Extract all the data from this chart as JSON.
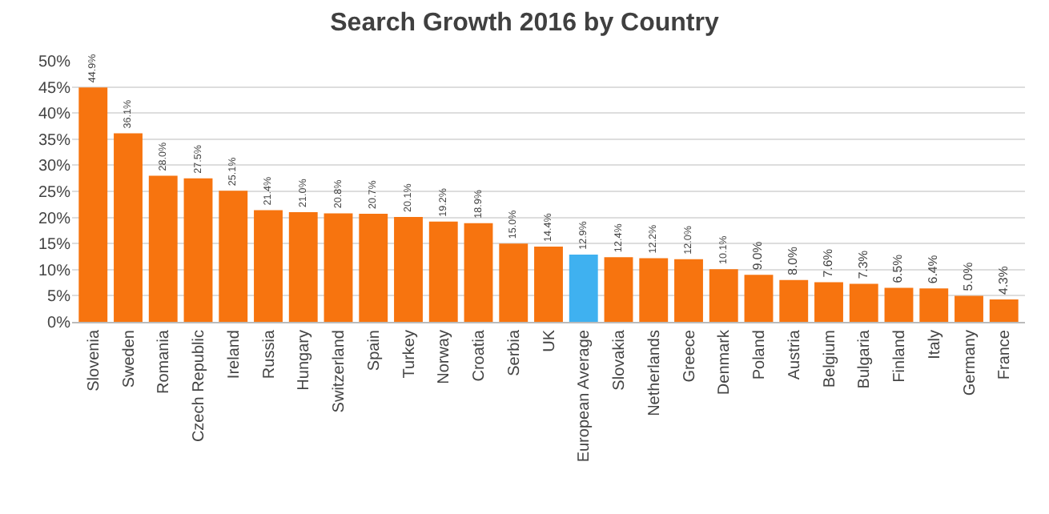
{
  "chart_data": {
    "type": "bar",
    "title": "Search Growth 2016 by Country",
    "categories": [
      "Slovenia",
      "Sweden",
      "Romania",
      "Czech Republic",
      "Ireland",
      "Russia",
      "Hungary",
      "Switzerland",
      "Spain",
      "Turkey",
      "Norway",
      "Croatia",
      "Serbia",
      "UK",
      "European Average",
      "Slovakia",
      "Netherlands",
      "Greece",
      "Denmark",
      "Poland",
      "Austria",
      "Belgium",
      "Bulgaria",
      "Finland",
      "Italy",
      "Germany",
      "France"
    ],
    "values": [
      44.9,
      36.1,
      28.0,
      27.5,
      25.1,
      21.4,
      21.0,
      20.8,
      20.7,
      20.1,
      19.2,
      18.9,
      15.0,
      14.4,
      12.9,
      12.4,
      12.2,
      12.0,
      10.1,
      9.0,
      8.0,
      7.6,
      7.3,
      6.5,
      6.4,
      5.0,
      4.3
    ],
    "value_labels": [
      "44.9%",
      "36.1%",
      "28.0%",
      "27.5%",
      "25.1%",
      "21.4%",
      "21.0%",
      "20.8%",
      "20.7%",
      "20.1%",
      "19.2%",
      "18.9%",
      "15.0%",
      "14.4%",
      "12.9%",
      "12.4%",
      "12.2%",
      "12.0%",
      "10.1%",
      "9.0%",
      "8.0%",
      "7.6%",
      "7.3%",
      "6.5%",
      "6.4%",
      "5.0%",
      "4.3%"
    ],
    "colors": [
      "#f7740f",
      "#f7740f",
      "#f7740f",
      "#f7740f",
      "#f7740f",
      "#f7740f",
      "#f7740f",
      "#f7740f",
      "#f7740f",
      "#f7740f",
      "#f7740f",
      "#f7740f",
      "#f7740f",
      "#f7740f",
      "#3fb1f0",
      "#f7740f",
      "#f7740f",
      "#f7740f",
      "#f7740f",
      "#f7740f",
      "#f7740f",
      "#f7740f",
      "#f7740f",
      "#f7740f",
      "#f7740f",
      "#f7740f",
      "#f7740f"
    ],
    "ylim": [
      0,
      50
    ],
    "yticks": [
      {
        "value": 0,
        "label": "0%"
      },
      {
        "value": 5,
        "label": "5%"
      },
      {
        "value": 10,
        "label": "10%"
      },
      {
        "value": 15,
        "label": "15%"
      },
      {
        "value": 20,
        "label": "20%"
      },
      {
        "value": 25,
        "label": "25%"
      },
      {
        "value": 30,
        "label": "30%"
      },
      {
        "value": 35,
        "label": "35%"
      },
      {
        "value": 40,
        "label": "40%"
      },
      {
        "value": 45,
        "label": "45%"
      },
      {
        "value": 50,
        "label": "50%"
      }
    ],
    "grid": "y"
  }
}
